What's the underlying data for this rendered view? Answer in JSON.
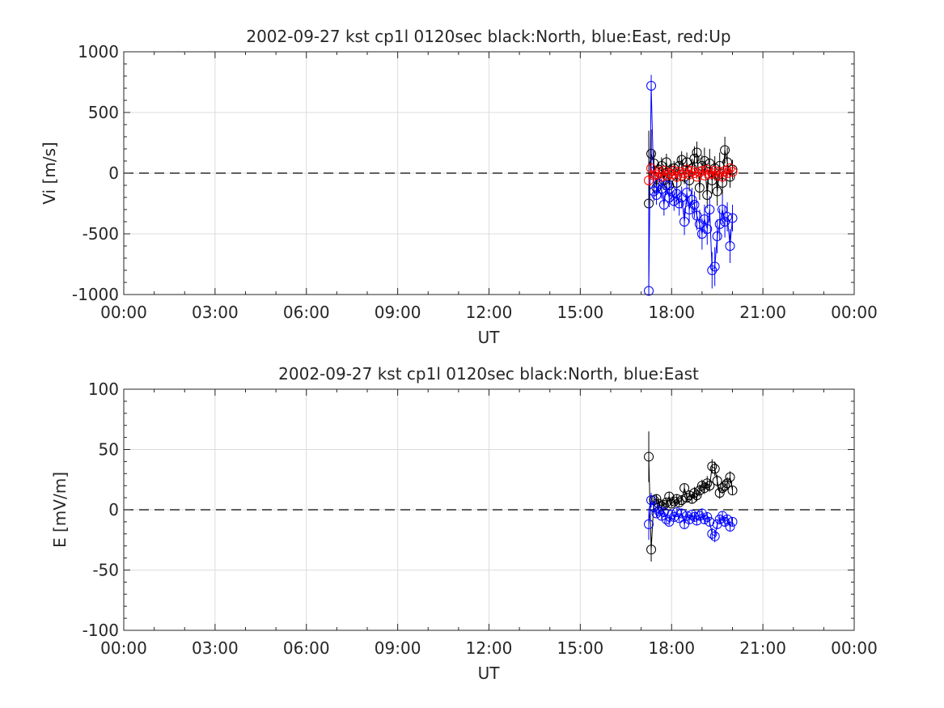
{
  "chart_data": [
    {
      "type": "scatter",
      "title": "2002-09-27 kst cp1l 0120sec black:North, blue:East, red:Up",
      "xlabel": "UT",
      "ylabel": "Vi [m/s]",
      "xlim": [
        0,
        24
      ],
      "ylim": [
        -1000,
        1000
      ],
      "xticks": [
        0,
        3,
        6,
        9,
        12,
        15,
        18,
        21,
        24
      ],
      "xticklabels": [
        "00:00",
        "03:00",
        "06:00",
        "09:00",
        "12:00",
        "15:00",
        "18:00",
        "21:00",
        "00:00"
      ],
      "yticks": [
        -1000,
        -500,
        0,
        500,
        1000
      ],
      "yticklabels": [
        "-1000",
        "-500",
        "0",
        "500",
        "1000"
      ],
      "grid": true,
      "zero_line": "dashed",
      "marker": "open-circle",
      "series": [
        {
          "name": "North",
          "color": "#000000",
          "x": [
            17.25,
            17.33,
            17.42,
            17.5,
            17.58,
            17.67,
            17.75,
            17.83,
            17.92,
            18.0,
            18.08,
            18.17,
            18.25,
            18.33,
            18.42,
            18.5,
            18.58,
            18.67,
            18.75,
            18.83,
            18.92,
            19.0,
            19.08,
            19.17,
            19.25,
            19.33,
            19.42,
            19.5,
            19.58,
            19.67,
            19.75,
            19.83,
            19.92,
            20.0
          ],
          "y": [
            -250,
            160,
            80,
            -120,
            30,
            60,
            -60,
            90,
            -100,
            20,
            40,
            -80,
            60,
            110,
            -30,
            90,
            -60,
            40,
            120,
            170,
            -120,
            60,
            100,
            -180,
            80,
            -60,
            40,
            -150,
            60,
            -80,
            190,
            90,
            -30,
            30
          ],
          "err": [
            600,
            200,
            100,
            80,
            60,
            70,
            80,
            70,
            90,
            60,
            60,
            70,
            80,
            70,
            60,
            80,
            90,
            80,
            100,
            90,
            100,
            90,
            110,
            110,
            120,
            110,
            100,
            120,
            110,
            100,
            110,
            120,
            90,
            80
          ]
        },
        {
          "name": "East",
          "color": "#0000ff",
          "x": [
            17.25,
            17.33,
            17.42,
            17.5,
            17.58,
            17.67,
            17.75,
            17.83,
            17.92,
            18.0,
            18.08,
            18.17,
            18.25,
            18.33,
            18.42,
            18.5,
            18.58,
            18.67,
            18.75,
            18.83,
            18.92,
            19.0,
            19.08,
            19.17,
            19.25,
            19.33,
            19.42,
            19.5,
            19.58,
            19.67,
            19.75,
            19.83,
            19.92,
            20.0
          ],
          "y": [
            -970,
            720,
            -150,
            -180,
            -90,
            -130,
            -260,
            -100,
            -200,
            -150,
            -230,
            -170,
            -250,
            -200,
            -400,
            -160,
            -300,
            -220,
            -260,
            -350,
            -420,
            -500,
            -380,
            -460,
            -300,
            -800,
            -770,
            -520,
            -420,
            -300,
            -400,
            -360,
            -600,
            -370
          ],
          "err": [
            700,
            90,
            80,
            80,
            70,
            80,
            90,
            80,
            80,
            90,
            80,
            90,
            100,
            90,
            110,
            100,
            110,
            100,
            110,
            120,
            120,
            130,
            120,
            130,
            110,
            150,
            160,
            140,
            130,
            120,
            130,
            120,
            140,
            110
          ]
        },
        {
          "name": "Up",
          "color": "#ff0000",
          "x": [
            17.25,
            17.33,
            17.42,
            17.5,
            17.58,
            17.67,
            17.75,
            17.83,
            17.92,
            18.0,
            18.08,
            18.17,
            18.25,
            18.33,
            18.42,
            18.5,
            18.58,
            18.67,
            18.75,
            18.83,
            18.92,
            19.0,
            19.08,
            19.17,
            19.25,
            19.33,
            19.42,
            19.5,
            19.58,
            19.67,
            19.75,
            19.83,
            19.92,
            20.0
          ],
          "y": [
            -60,
            40,
            -20,
            -10,
            10,
            -30,
            20,
            -20,
            0,
            -10,
            20,
            -30,
            10,
            -20,
            0,
            30,
            -10,
            20,
            0,
            -30,
            10,
            20,
            -20,
            30,
            -10,
            0,
            20,
            -20,
            10,
            -30,
            20,
            0,
            40,
            10
          ],
          "err": [
            40,
            30,
            20,
            20,
            20,
            20,
            20,
            20,
            20,
            20,
            20,
            20,
            20,
            20,
            20,
            20,
            20,
            20,
            20,
            20,
            20,
            20,
            20,
            20,
            20,
            20,
            20,
            20,
            20,
            20,
            20,
            20,
            20,
            20
          ]
        }
      ]
    },
    {
      "type": "scatter",
      "title": "2002-09-27 kst cp1l 0120sec black:North, blue:East",
      "xlabel": "UT",
      "ylabel": "E [mV/m]",
      "xlim": [
        0,
        24
      ],
      "ylim": [
        -100,
        100
      ],
      "xticks": [
        0,
        3,
        6,
        9,
        12,
        15,
        18,
        21,
        24
      ],
      "xticklabels": [
        "00:00",
        "03:00",
        "06:00",
        "09:00",
        "12:00",
        "15:00",
        "18:00",
        "21:00",
        "00:00"
      ],
      "yticks": [
        -100,
        -50,
        0,
        50,
        100
      ],
      "yticklabels": [
        "-100",
        "-50",
        "0",
        "50",
        "100"
      ],
      "grid": true,
      "zero_line": "dashed",
      "marker": "open-circle",
      "series": [
        {
          "name": "North",
          "color": "#000000",
          "x": [
            17.25,
            17.33,
            17.42,
            17.5,
            17.58,
            17.67,
            17.75,
            17.83,
            17.92,
            18.0,
            18.08,
            18.17,
            18.25,
            18.33,
            18.42,
            18.5,
            18.58,
            18.67,
            18.75,
            18.83,
            18.92,
            19.0,
            19.08,
            19.17,
            19.25,
            19.33,
            19.42,
            19.5,
            19.58,
            19.67,
            19.75,
            19.83,
            19.92,
            20.0
          ],
          "y": [
            44,
            -33,
            8,
            9,
            5,
            3,
            4,
            6,
            11,
            5,
            7,
            9,
            6,
            8,
            18,
            10,
            12,
            9,
            14,
            12,
            16,
            20,
            18,
            22,
            20,
            36,
            34,
            24,
            14,
            18,
            20,
            22,
            27,
            16
          ],
          "err": [
            21,
            10,
            4,
            4,
            3,
            3,
            3,
            3,
            4,
            3,
            3,
            4,
            3,
            4,
            4,
            4,
            4,
            4,
            5,
            5,
            5,
            5,
            5,
            6,
            5,
            6,
            6,
            5,
            5,
            5,
            5,
            5,
            5,
            4
          ]
        },
        {
          "name": "East",
          "color": "#0000ff",
          "x": [
            17.25,
            17.33,
            17.42,
            17.5,
            17.58,
            17.67,
            17.75,
            17.83,
            17.92,
            18.0,
            18.08,
            18.17,
            18.25,
            18.33,
            18.42,
            18.5,
            18.58,
            18.67,
            18.75,
            18.83,
            18.92,
            19.0,
            19.08,
            19.17,
            19.25,
            19.33,
            19.42,
            19.5,
            19.58,
            19.67,
            19.75,
            19.83,
            19.92,
            20.0
          ],
          "y": [
            -12,
            8,
            2,
            -3,
            -1,
            -5,
            -2,
            -8,
            -10,
            -4,
            -6,
            -2,
            -7,
            -3,
            -12,
            -5,
            -8,
            -4,
            -6,
            -9,
            -5,
            -3,
            -8,
            -6,
            -10,
            -20,
            -22,
            -12,
            -8,
            -5,
            -10,
            -8,
            -14,
            -10
          ],
          "err": [
            13,
            6,
            3,
            3,
            3,
            3,
            3,
            3,
            3,
            3,
            3,
            3,
            3,
            3,
            4,
            3,
            4,
            3,
            4,
            4,
            4,
            4,
            4,
            4,
            4,
            5,
            5,
            4,
            4,
            4,
            4,
            4,
            4,
            4
          ]
        }
      ]
    }
  ]
}
